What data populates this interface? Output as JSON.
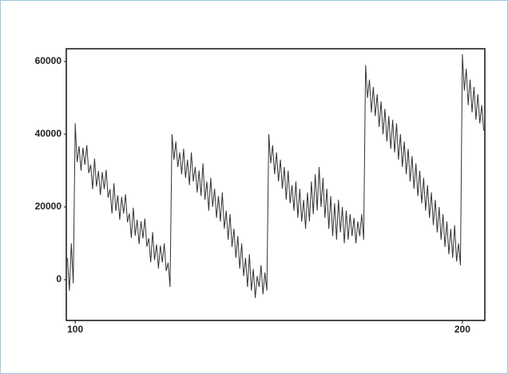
{
  "chart_data": {
    "type": "line",
    "x": [
      98,
      98.5,
      99,
      99.5,
      100,
      100.5,
      101,
      101.5,
      102,
      102.5,
      103,
      103.5,
      104,
      104.5,
      105,
      105.5,
      106,
      106.5,
      107,
      107.5,
      108,
      108.5,
      109,
      109.5,
      110,
      110.5,
      111,
      111.5,
      112,
      112.5,
      113,
      113.5,
      114,
      114.5,
      115,
      115.5,
      116,
      116.5,
      117,
      117.5,
      118,
      118.5,
      119,
      119.5,
      120,
      120.5,
      121,
      121.5,
      122,
      122.5,
      123,
      123.5,
      124,
      124.5,
      125,
      125.5,
      126,
      126.5,
      127,
      127.5,
      128,
      128.5,
      129,
      129.5,
      130,
      130.5,
      131,
      131.5,
      132,
      132.5,
      133,
      133.5,
      134,
      134.5,
      135,
      135.5,
      136,
      136.5,
      137,
      137.5,
      138,
      138.5,
      139,
      139.5,
      140,
      140.5,
      141,
      141.5,
      142,
      142.5,
      143,
      143.5,
      144,
      144.5,
      145,
      145.5,
      146,
      146.5,
      147,
      147.5,
      148,
      148.5,
      149,
      149.5,
      150,
      150.5,
      151,
      151.5,
      152,
      152.5,
      153,
      153.5,
      154,
      154.5,
      155,
      155.5,
      156,
      156.5,
      157,
      157.5,
      158,
      158.5,
      159,
      159.5,
      160,
      160.5,
      161,
      161.5,
      162,
      162.5,
      163,
      163.5,
      164,
      164.5,
      165,
      165.5,
      166,
      166.5,
      167,
      167.5,
      168,
      168.5,
      169,
      169.5,
      170,
      170.5,
      171,
      171.5,
      172,
      172.5,
      173,
      173.5,
      174,
      174.5,
      175,
      175.5,
      176,
      176.5,
      177,
      177.5,
      178,
      178.5,
      179,
      179.5,
      180,
      180.5,
      181,
      181.5,
      182,
      182.5,
      183,
      183.5,
      184,
      184.5,
      185,
      185.5,
      186,
      186.5,
      187,
      187.5,
      188,
      188.5,
      189,
      189.5,
      190,
      190.5,
      191,
      191.5,
      192,
      192.5,
      193,
      193.5,
      194,
      194.5,
      195,
      195.5,
      196,
      196.5,
      197,
      197.5,
      198,
      198.5,
      199,
      199.5,
      200,
      200.5,
      201,
      201.5,
      202,
      202.5,
      203,
      203.5,
      204,
      204.5,
      205,
      205.5
    ],
    "values": [
      6000,
      -3000,
      10000,
      -1000,
      43000,
      32300,
      36700,
      30000,
      36300,
      31600,
      37000,
      29300,
      31600,
      24900,
      33300,
      25600,
      29900,
      23300,
      29600,
      24900,
      30200,
      22600,
      24900,
      18200,
      26500,
      18900,
      23200,
      16500,
      22800,
      18200,
      23500,
      15800,
      18200,
      11500,
      19800,
      12100,
      16500,
      9800,
      16100,
      11400,
      16800,
      9100,
      11400,
      4800,
      13100,
      5400,
      9700,
      3100,
      9400,
      4700,
      10000,
      2400,
      4700,
      -2000,
      40000,
      33000,
      38000,
      31000,
      35000,
      29000,
      36000,
      28000,
      33000,
      26000,
      35000,
      27000,
      31000,
      24000,
      30000,
      23000,
      32000,
      22000,
      27000,
      19000,
      28000,
      20000,
      25000,
      17000,
      23000,
      16000,
      24000,
      14000,
      19000,
      11000,
      18000,
      9000,
      14000,
      6000,
      12000,
      3000,
      10000,
      1000,
      6000,
      -2000,
      7000,
      -3000,
      3000,
      -5000,
      1000,
      -2000,
      4000,
      -4000,
      2000,
      -3000,
      40000,
      32000,
      37000,
      29000,
      35000,
      27000,
      33000,
      25000,
      31000,
      22000,
      30000,
      21000,
      26000,
      19000,
      27000,
      17000,
      25000,
      16000,
      22000,
      14000,
      24000,
      16000,
      27000,
      18000,
      29000,
      19000,
      31000,
      20000,
      28000,
      17000,
      25000,
      14000,
      23000,
      12000,
      21000,
      11000,
      22000,
      13000,
      20000,
      10000,
      19000,
      11000,
      18000,
      12000,
      17000,
      10000,
      16000,
      12000,
      18000,
      11000,
      59000,
      50000,
      55000,
      46000,
      53000,
      45000,
      51000,
      42000,
      49000,
      40000,
      47000,
      38000,
      45000,
      36000,
      44000,
      35000,
      43000,
      33000,
      40000,
      31000,
      38000,
      29000,
      36000,
      27000,
      34000,
      25000,
      32000,
      23000,
      30000,
      21000,
      28000,
      19000,
      26000,
      17000,
      24000,
      15000,
      22000,
      13000,
      20000,
      11000,
      18000,
      9000,
      16000,
      7000,
      14000,
      6000,
      15000,
      5000,
      10000,
      4000,
      62000,
      52000,
      58000,
      48000,
      55000,
      46000,
      53000,
      44000,
      51000,
      43000,
      48000,
      41000
    ],
    "color": "#333333",
    "xlim": [
      97.7,
      205.8
    ],
    "xticks": [
      100,
      200
    ],
    "ylim": [
      -11200,
      63500
    ],
    "yticks": [
      0,
      20000,
      40000,
      60000
    ],
    "grid": false
  }
}
